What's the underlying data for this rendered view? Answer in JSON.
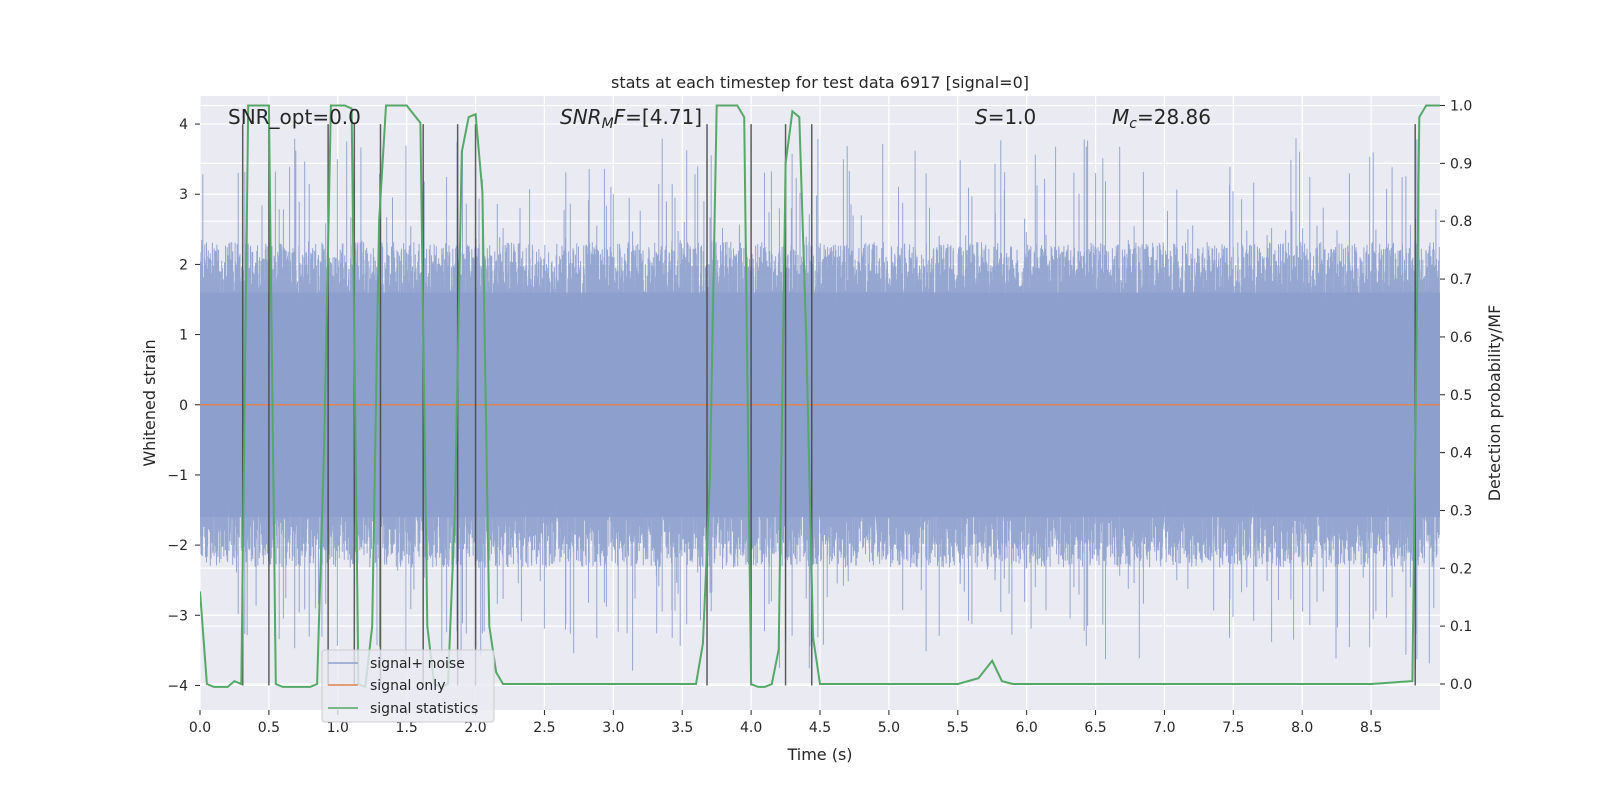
{
  "chart_data": {
    "type": "line",
    "title": "stats at each timestep for test data 6917 [signal=0]",
    "xlabel": "Time (s)",
    "ylabel": "Whitened strain",
    "y2label": "Detection probability/MF",
    "xlim": [
      0,
      9.0
    ],
    "ylim": [
      -4.35,
      4.4
    ],
    "y2lim": [
      -0.045,
      1.0165
    ],
    "x_ticks": [
      0.0,
      0.5,
      1.0,
      1.5,
      2.0,
      2.5,
      3.0,
      3.5,
      4.0,
      4.5,
      5.0,
      5.5,
      6.0,
      6.5,
      7.0,
      7.5,
      8.0,
      8.5
    ],
    "x_tick_labels": [
      "0.0",
      "0.5",
      "1.0",
      "1.5",
      "2.0",
      "2.5",
      "3.0",
      "3.5",
      "4.0",
      "4.5",
      "5.0",
      "5.5",
      "6.0",
      "6.5",
      "7.0",
      "7.5",
      "8.0",
      "8.5"
    ],
    "y_ticks": [
      -4,
      -3,
      -2,
      -1,
      0,
      1,
      2,
      3,
      4
    ],
    "y_tick_labels": [
      "−4",
      "−3",
      "−2",
      "−1",
      "0",
      "1",
      "2",
      "3",
      "4"
    ],
    "y2_ticks": [
      0.0,
      0.1,
      0.2,
      0.3,
      0.4,
      0.5,
      0.6,
      0.7,
      0.8,
      0.9,
      1.0
    ],
    "y2_tick_labels": [
      "0.0",
      "0.1",
      "0.2",
      "0.3",
      "0.4",
      "0.5",
      "0.6",
      "0.7",
      "0.8",
      "0.9",
      "1.0"
    ],
    "grid": true,
    "legend_position": "bottom-left",
    "annotations": [
      {
        "id": "snr-opt",
        "label": "SNR_opt=0.0"
      },
      {
        "id": "snr-mf",
        "label": "SNR_MF=[4.71]"
      },
      {
        "id": "s-stat",
        "label": "S=1.0"
      },
      {
        "id": "mc",
        "label": "M_c=28.86"
      }
    ],
    "series": [
      {
        "name": "signal+ noise",
        "axis": "left",
        "color": "#8c9fcc",
        "envelope_typical": [
          -1.6,
          1.6
        ],
        "envelope_peak": [
          -3.8,
          3.8
        ]
      },
      {
        "name": "signal only",
        "axis": "left",
        "color": "#dd8452",
        "x": [
          0.0,
          9.0
        ],
        "y": [
          0.0,
          0.0
        ]
      },
      {
        "name": "signal statistics",
        "axis": "right",
        "color": "#55a868",
        "x": [
          0.0,
          0.05,
          0.1,
          0.2,
          0.25,
          0.3,
          0.35,
          0.4,
          0.5,
          0.55,
          0.6,
          0.7,
          0.8,
          0.85,
          0.9,
          0.95,
          1.0,
          1.05,
          1.1,
          1.15,
          1.2,
          1.25,
          1.3,
          1.35,
          1.4,
          1.5,
          1.6,
          1.65,
          1.7,
          1.75,
          1.8,
          1.85,
          1.9,
          1.95,
          2.0,
          2.05,
          2.1,
          2.15,
          2.2,
          2.25,
          2.5,
          3.0,
          3.5,
          3.6,
          3.65,
          3.7,
          3.75,
          3.8,
          3.9,
          3.95,
          4.0,
          4.05,
          4.1,
          4.15,
          4.2,
          4.25,
          4.3,
          4.35,
          4.4,
          4.45,
          4.5,
          4.55,
          4.6,
          5.0,
          5.5,
          5.65,
          5.75,
          5.82,
          5.9,
          6.0,
          6.5,
          7.0,
          7.5,
          8.0,
          8.5,
          8.8,
          8.85,
          8.9,
          8.95,
          9.0
        ],
        "y": [
          0.16,
          0.0,
          -0.005,
          -0.005,
          0.005,
          0.0,
          1.0,
          1.0,
          1.0,
          0.0,
          -0.005,
          -0.005,
          -0.005,
          0.0,
          0.4,
          1.0,
          1.0,
          1.0,
          0.995,
          0.0,
          -0.005,
          0.1,
          0.8,
          1.0,
          1.0,
          1.0,
          0.97,
          0.1,
          0.0,
          -0.005,
          0.0,
          0.3,
          0.92,
          0.98,
          0.985,
          0.85,
          0.1,
          0.02,
          0.0,
          0.0,
          0.0,
          0.0,
          0.0,
          0.0,
          0.07,
          0.35,
          1.0,
          1.0,
          1.0,
          0.98,
          0.0,
          -0.005,
          -0.005,
          0.0,
          0.06,
          0.9,
          0.99,
          0.98,
          0.6,
          0.08,
          0.0,
          0.0,
          0.0,
          0.0,
          0.0,
          0.01,
          0.04,
          0.005,
          0.0,
          0.0,
          0.0,
          0.0,
          0.0,
          0.0,
          0.0,
          0.005,
          0.98,
          1.0,
          1.0,
          1.0
        ]
      }
    ],
    "vertical_markers_x": [
      0.31,
      0.5,
      0.93,
      1.12,
      1.31,
      1.62,
      1.87,
      2.0,
      3.68,
      4.0,
      4.25,
      4.44,
      8.82
    ]
  }
}
